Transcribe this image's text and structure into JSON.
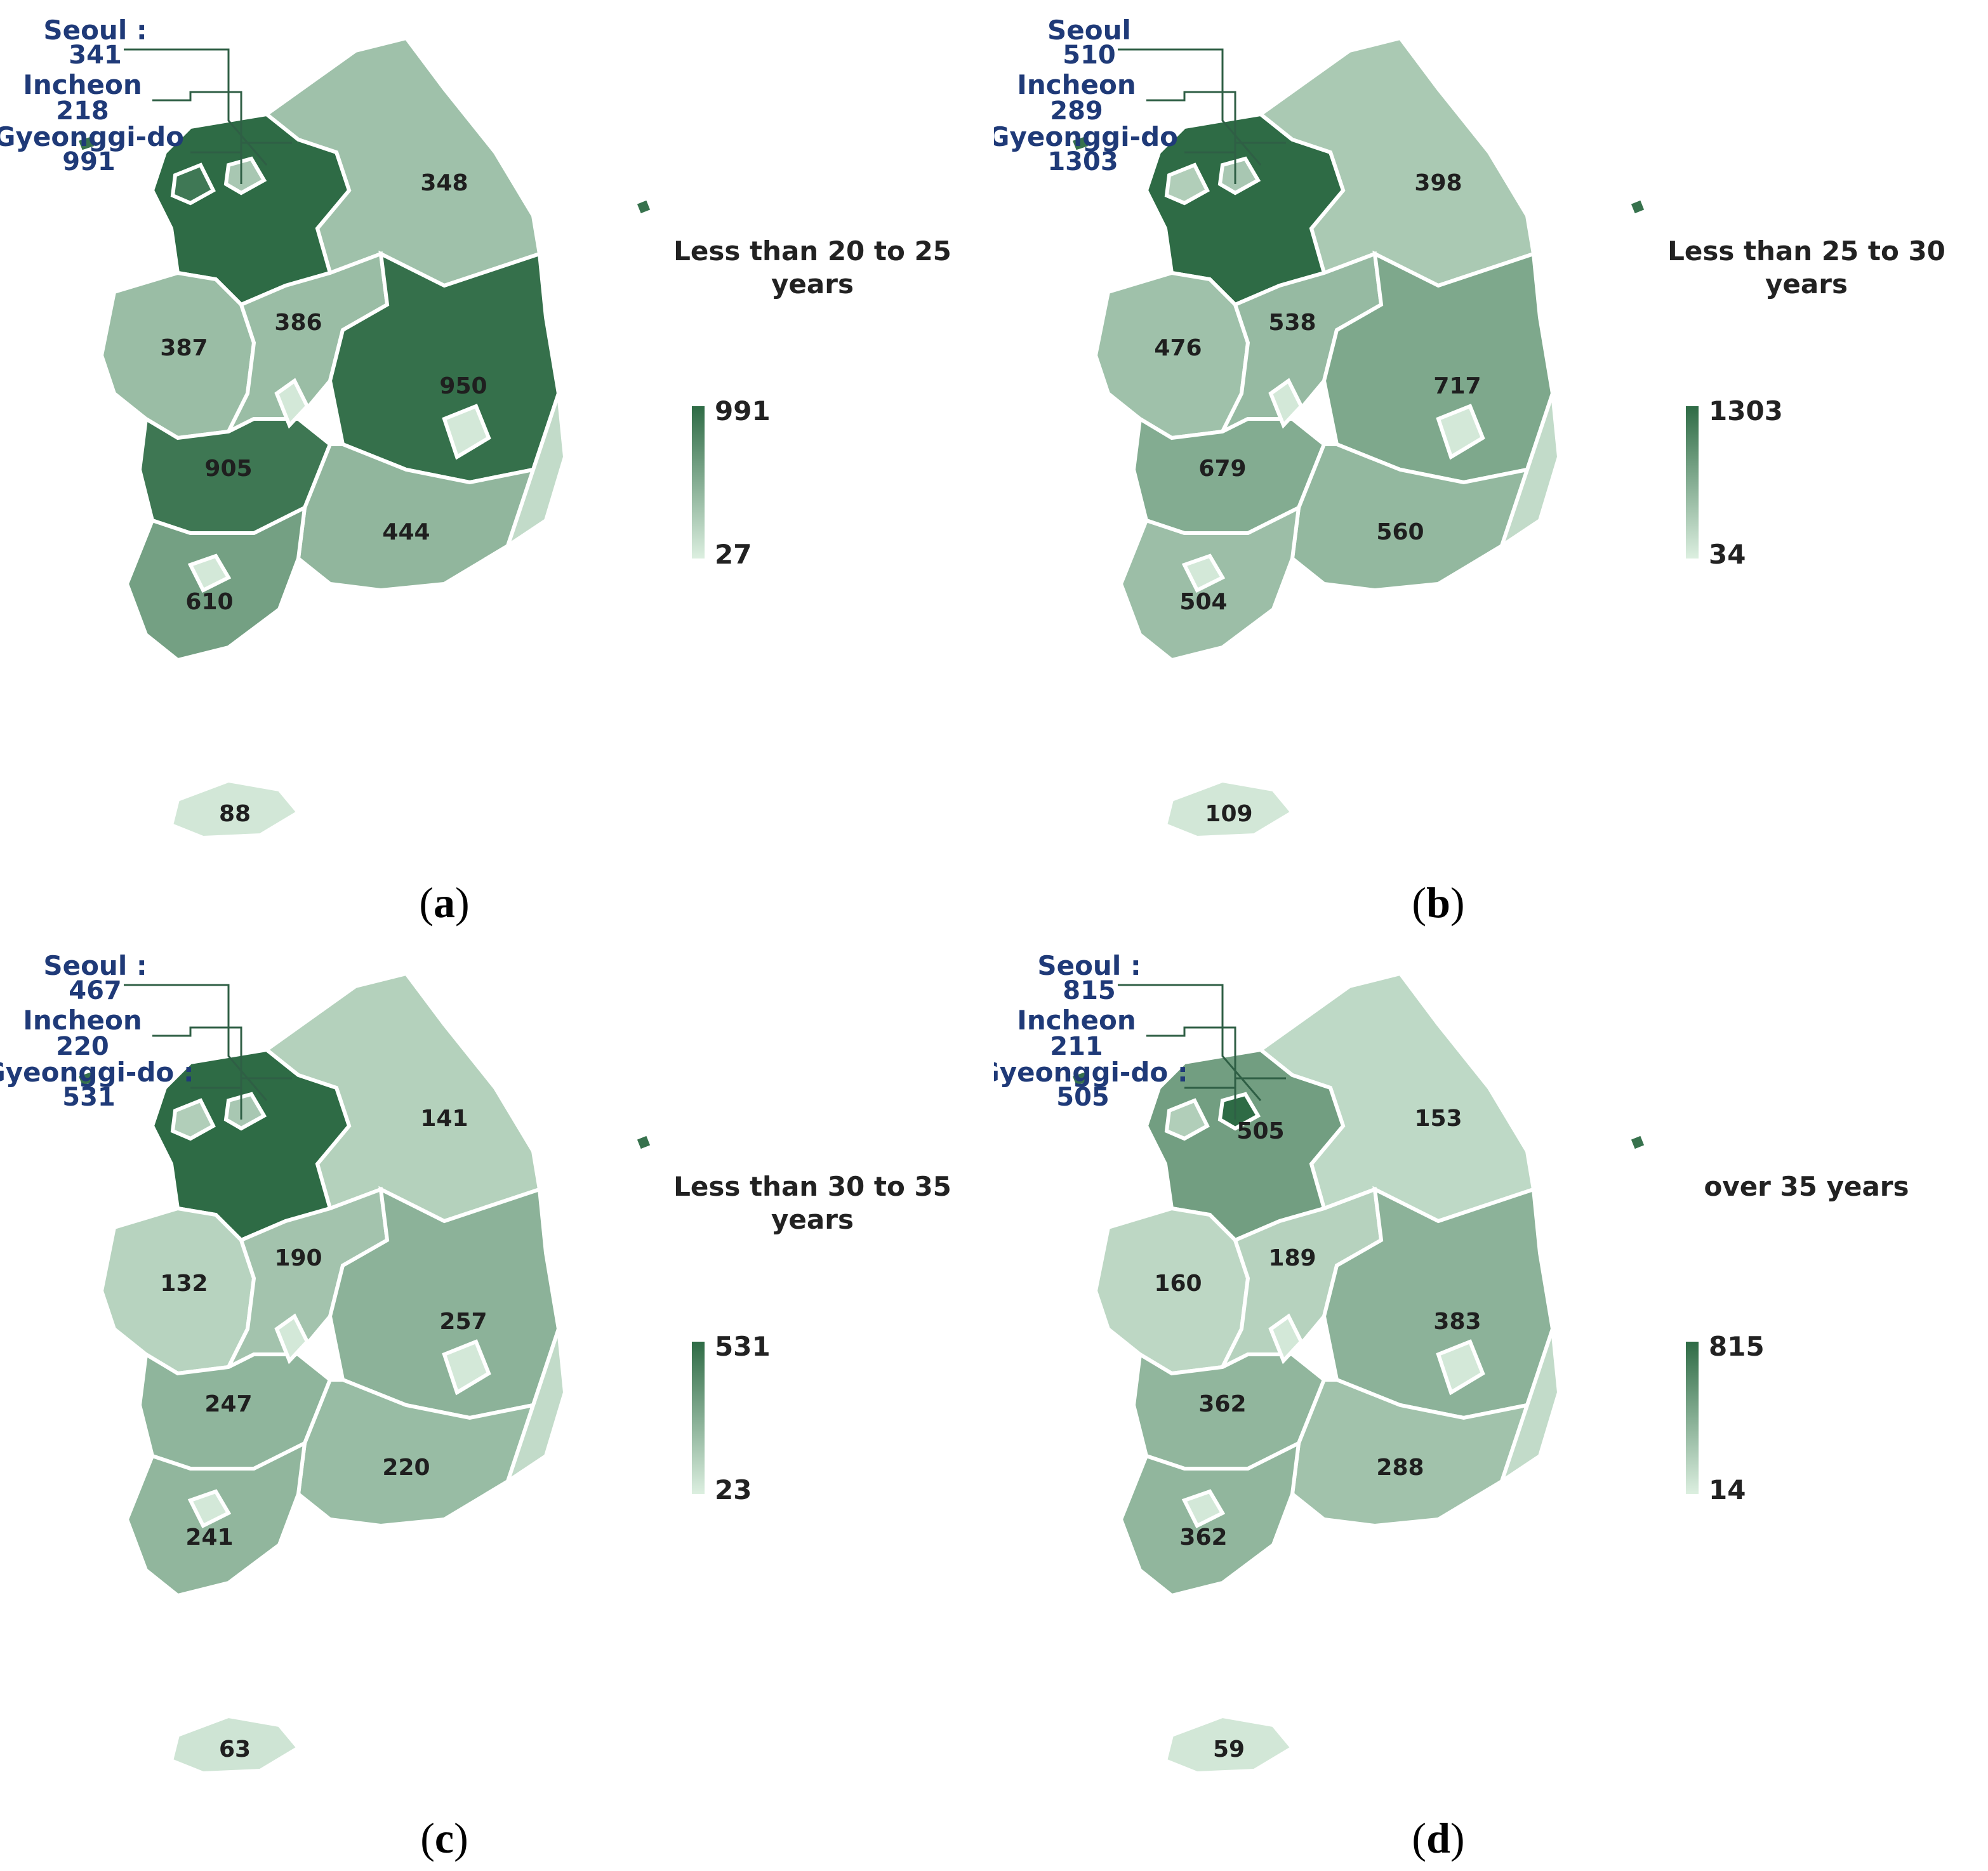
{
  "colors": {
    "high": "#2e6b45",
    "low": "#dcefe0",
    "callout_text": "#1f3a78"
  },
  "panels": [
    {
      "caption": "a",
      "legend": {
        "title_line1": "Less than 20 to 25",
        "title_line2": "years",
        "max": "991",
        "min": "27"
      },
      "callouts": {
        "seoul": {
          "name": "Seoul :",
          "value": "341"
        },
        "incheon": {
          "name": "Incheon",
          "value": "218"
        },
        "gyeonggi": {
          "name": "Gyeonggi-do",
          "value": "991"
        }
      },
      "regions": {
        "gangwon": "348",
        "chungnam": "387",
        "chungbuk": "386",
        "gyeongbuk": "950",
        "jeonbuk": "905",
        "gyeongnam": "444",
        "jeonnam": "610",
        "jeju": "88"
      },
      "level_shades": {
        "gyeonggi": 1.0,
        "gangwon": 0.35,
        "chungnam": 0.38,
        "chungbuk": 0.38,
        "gyeongbuk": 0.96,
        "jeonbuk": 0.91,
        "gyeongnam": 0.43,
        "jeonnam": 0.6,
        "jeju": 0.06,
        "metro": 0.05
      }
    },
    {
      "caption": "b",
      "legend": {
        "title_line1": "Less than 25 to 30",
        "title_line2": "years",
        "max": "1303",
        "min": "34"
      },
      "callouts": {
        "seoul": {
          "name": "Seoul",
          "value": "510"
        },
        "incheon": {
          "name": "Incheon",
          "value": "289"
        },
        "gyeonggi": {
          "name": "Gyeonggi-do",
          "value": "1303"
        }
      },
      "regions": {
        "gangwon": "398",
        "chungnam": "476",
        "chungbuk": "538",
        "gyeongbuk": "717",
        "jeonbuk": "679",
        "gyeongnam": "560",
        "jeonnam": "504",
        "jeju": "109"
      },
      "level_shades": {
        "gyeonggi": 1.0,
        "gangwon": 0.29,
        "chungnam": 0.35,
        "chungbuk": 0.4,
        "gyeongbuk": 0.54,
        "jeonbuk": 0.51,
        "gyeongnam": 0.42,
        "jeonnam": 0.37,
        "jeju": 0.06,
        "metro": 0.05
      }
    },
    {
      "caption": "c",
      "legend": {
        "title_line1": "Less than 30 to 35",
        "title_line2": "years",
        "max": "531",
        "min": "23"
      },
      "callouts": {
        "seoul": {
          "name": "Seoul :",
          "value": "467"
        },
        "incheon": {
          "name": "Incheon",
          "value": "220"
        },
        "gyeonggi": {
          "name": "Gyeonggi-do :",
          "value": "531"
        }
      },
      "regions": {
        "gangwon": "141",
        "chungnam": "132",
        "chungbuk": "190",
        "gyeongbuk": "257",
        "jeonbuk": "247",
        "gyeongnam": "220",
        "jeonnam": "241",
        "jeju": "63"
      },
      "level_shades": {
        "gyeonggi": 1.0,
        "gangwon": 0.23,
        "chungnam": 0.21,
        "chungbuk": 0.33,
        "gyeongbuk": 0.46,
        "jeonbuk": 0.44,
        "gyeongnam": 0.39,
        "jeonnam": 0.43,
        "jeju": 0.08,
        "metro": 0.05
      }
    },
    {
      "caption": "d",
      "legend": {
        "title_line1": "over 35 years",
        "title_line2": "",
        "max": "815",
        "min": "14"
      },
      "callouts": {
        "seoul": {
          "name": "Seoul :",
          "value": "815"
        },
        "incheon": {
          "name": "Incheon",
          "value": "211"
        },
        "gyeonggi": {
          "name": "Gyeonggi-do :",
          "value": "505"
        }
      },
      "regions": {
        "gyeonggi_inner": "505",
        "gangwon": "153",
        "chungnam": "160",
        "chungbuk": "189",
        "gyeongbuk": "383",
        "jeonbuk": "362",
        "gyeongnam": "288",
        "jeonnam": "362",
        "jeju": "59"
      },
      "level_shades": {
        "gyeonggi": 0.61,
        "gangwon": 0.17,
        "chungnam": 0.18,
        "chungbuk": 0.22,
        "gyeongbuk": 0.46,
        "jeonbuk": 0.43,
        "gyeongnam": 0.34,
        "jeonnam": 0.43,
        "jeju": 0.06,
        "metro": 0.05
      }
    }
  ]
}
